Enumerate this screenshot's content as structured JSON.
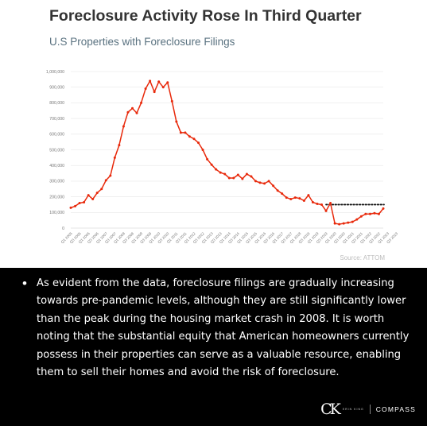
{
  "chart_data": {
    "type": "line",
    "title": "Foreclosure Activity Rose In Third Quarter",
    "subtitle": "U.S Properties with Foreclosure Filings",
    "source": "Source: ATTOM",
    "ylim": [
      0,
      1000000
    ],
    "yticks": [
      "0",
      "100,000",
      "200,000",
      "300,000",
      "400,000",
      "500,000",
      "600,000",
      "700,000",
      "800,000",
      "900,000",
      "1,000,000"
    ],
    "xticks": [
      "Q1 2005",
      "Q3 2005",
      "Q1 2006",
      "Q3 2006",
      "Q1 2007",
      "Q3 2007",
      "Q1 2008",
      "Q3 2008",
      "Q1 2009",
      "Q3 2009",
      "Q1 2010",
      "Q3 2010",
      "Q1 2011",
      "Q3 2011",
      "Q1 2012",
      "Q3 2012",
      "Q1 2013",
      "Q3 2013",
      "Q1 2014",
      "Q3 2014",
      "Q1 2015",
      "Q3 2015",
      "Q1 2016",
      "Q3 2016",
      "Q1 2017",
      "Q3 2017",
      "Q1 2018",
      "Q3 2018",
      "Q1 2019",
      "Q3 2019",
      "Q1 2020",
      "Q3 2020",
      "Q1 2021",
      "Q3 2021",
      "Q1 2022",
      "Q3 2022",
      "Q1 2023",
      "Q3 2023"
    ],
    "grid": true,
    "series": [
      {
        "color": "#e8290b",
        "values": [
          130000,
          140000,
          160000,
          165000,
          210000,
          185000,
          225000,
          250000,
          305000,
          335000,
          450000,
          530000,
          650000,
          740000,
          765000,
          735000,
          800000,
          890000,
          940000,
          870000,
          935000,
          900000,
          930000,
          810000,
          680000,
          610000,
          610000,
          585000,
          570000,
          545000,
          500000,
          440000,
          405000,
          375000,
          355000,
          345000,
          320000,
          320000,
          340000,
          315000,
          345000,
          330000,
          300000,
          290000,
          285000,
          300000,
          270000,
          240000,
          220000,
          195000,
          185000,
          195000,
          190000,
          175000,
          210000,
          165000,
          155000,
          150000,
          110000,
          160000,
          30000,
          25000,
          30000,
          35000,
          40000,
          55000,
          75000,
          90000,
          90000,
          95000,
          90000,
          125000
        ]
      }
    ],
    "reference_line": {
      "value": 150000,
      "style": "dotted",
      "color": "#111111"
    }
  },
  "note": {
    "bullet": "•",
    "text": "As evident from the data, foreclosure filings are gradually increasing towards pre-pandemic levels, although they are still significantly lower than the peak during the housing market crash in 2008. It is worth noting that the substantial equity that American homeowners currently possess in their properties can serve as a valuable resource, enabling them to sell their homes and avoid the risk of foreclosure."
  },
  "brand": {
    "logo": "CK",
    "name": "ERIN KING",
    "partner": "COMPASS"
  }
}
